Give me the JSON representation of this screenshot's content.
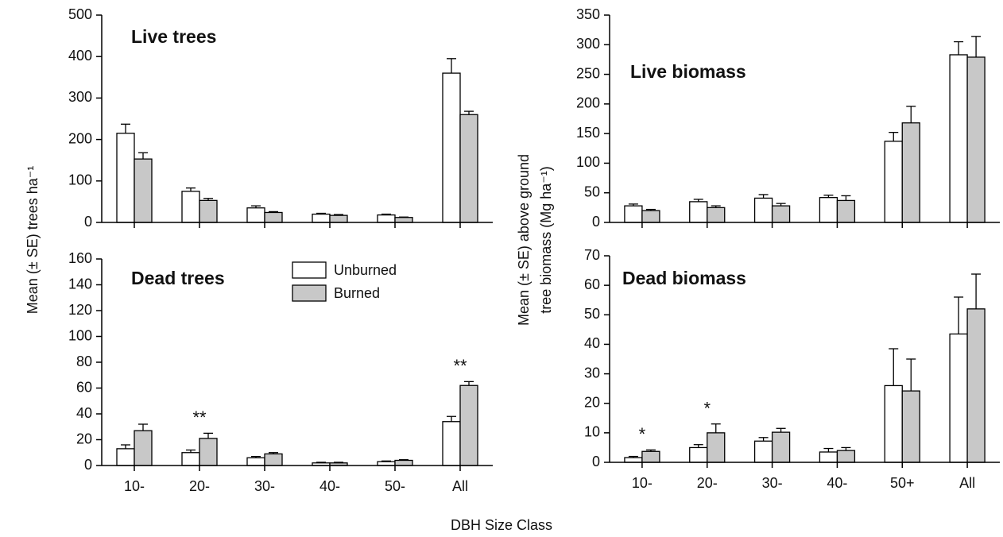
{
  "y_label_left": "Mean (± SE) trees ha⁻¹",
  "y_label_right": [
    "Mean (± SE) above ground",
    "tree biomass (Mg ha⁻¹)"
  ],
  "x_label": "DBH Size Class",
  "chart_data": [
    {
      "type": "bar",
      "title": "Live trees",
      "series": [
        {
          "color": "#ffffff",
          "values": [
            215,
            75,
            35,
            20,
            18,
            360
          ],
          "errors": [
            22,
            8,
            5,
            2,
            2,
            35
          ]
        },
        {
          "color": "#c8c8c8",
          "values": [
            153,
            53,
            24,
            17,
            12,
            260
          ],
          "errors": [
            15,
            5,
            2,
            2,
            1,
            8
          ]
        }
      ],
      "ylim": [
        0,
        500
      ],
      "yticks": [
        0,
        100,
        200,
        300,
        400,
        500
      ],
      "grid": false
    },
    {
      "type": "bar",
      "title": "Dead trees",
      "categories": [
        "10-",
        "20-",
        "30-",
        "40-",
        "50-",
        "All"
      ],
      "series": [
        {
          "name": "Unburned",
          "color": "#ffffff",
          "values": [
            13,
            10,
            6,
            2,
            3,
            34
          ],
          "errors": [
            3,
            2,
            1,
            0.5,
            0.5,
            4
          ]
        },
        {
          "name": "Burned",
          "color": "#c8c8c8",
          "values": [
            27,
            21,
            9,
            2,
            4,
            62
          ],
          "errors": [
            5,
            4,
            1,
            0.5,
            0.5,
            3
          ]
        }
      ],
      "ylim": [
        0,
        160
      ],
      "yticks": [
        0,
        20,
        40,
        60,
        80,
        100,
        120,
        140,
        160
      ],
      "grid": false,
      "legend": "top-center",
      "annotations": [
        {
          "text": "**",
          "category": "20-"
        },
        {
          "text": "**",
          "category": "All"
        }
      ]
    },
    {
      "type": "bar",
      "title": "Live biomass",
      "series": [
        {
          "color": "#ffffff",
          "values": [
            28,
            35,
            41,
            42,
            137,
            283
          ],
          "errors": [
            3,
            4,
            6,
            4,
            15,
            22
          ]
        },
        {
          "color": "#c8c8c8",
          "values": [
            20,
            25,
            28,
            37,
            168,
            279
          ],
          "errors": [
            2,
            3,
            4,
            8,
            28,
            35
          ]
        }
      ],
      "ylim": [
        0,
        350
      ],
      "yticks": [
        0,
        50,
        100,
        150,
        200,
        250,
        300,
        350
      ],
      "grid": false
    },
    {
      "type": "bar",
      "title": "Dead biomass",
      "categories": [
        "10-",
        "20-",
        "30-",
        "40-",
        "50+",
        "All"
      ],
      "series": [
        {
          "color": "#ffffff",
          "values": [
            1.6,
            5,
            7.2,
            3.5,
            26,
            43.5
          ],
          "errors": [
            0.4,
            1,
            1.2,
            1.2,
            12.5,
            12.5
          ]
        },
        {
          "color": "#c8c8c8",
          "values": [
            3.7,
            10,
            10.2,
            4,
            24.2,
            52
          ],
          "errors": [
            0.5,
            3,
            1.3,
            1,
            10.8,
            11.8
          ]
        }
      ],
      "ylim": [
        0,
        70
      ],
      "yticks": [
        0,
        10,
        20,
        30,
        40,
        50,
        60,
        70
      ],
      "grid": false,
      "annotations": [
        {
          "text": "*",
          "category": "10-"
        },
        {
          "text": "*",
          "category": "20-"
        }
      ]
    }
  ]
}
